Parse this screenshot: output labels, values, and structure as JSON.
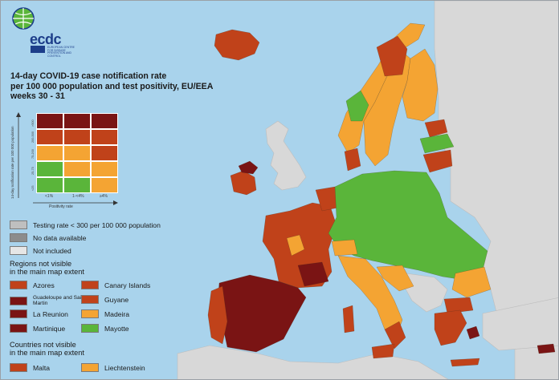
{
  "title": {
    "line1": "14-day COVID-19 case notification rate",
    "line2": "per 100 000 population and test positivity, EU/EEA",
    "line3": "weeks 30 - 31"
  },
  "logo": {
    "wordmark": "ecdc",
    "subtitle": "EUROPEAN CENTRE FOR DISEASE PREVENTION AND CONTROL"
  },
  "matrix": {
    "y_axis_title": "14-day notification rate per 100 000 population",
    "x_axis_title": "Positivity rate",
    "row_labels": [
      ">500",
      "200-500",
      "75-200",
      "25-75",
      "<25"
    ],
    "col_labels": [
      "<1%",
      "1-<4%",
      "≥4%"
    ],
    "colors": [
      [
        "#7a1414",
        "#7a1414",
        "#7a1414"
      ],
      [
        "#c0421a",
        "#c0421a",
        "#c0421a"
      ],
      [
        "#f4a433",
        "#f4a433",
        "#c0421a"
      ],
      [
        "#5ab53a",
        "#f4a433",
        "#f4a433"
      ],
      [
        "#5ab53a",
        "#5ab53a",
        "#f4a433"
      ]
    ]
  },
  "legend": {
    "status": [
      {
        "label": "Testing rate < 300 per 100 000 population",
        "color": "#bfbfbf"
      },
      {
        "label": "No data available",
        "color": "#8c8c8c"
      },
      {
        "label": "Not included",
        "color": "#e6e6e6"
      }
    ],
    "regions_title_1": "Regions not visible",
    "regions_title_2": "in the main map extent",
    "regions": [
      {
        "label": "Azores",
        "color": "#c0421a"
      },
      {
        "label": "Canary Islands",
        "color": "#c0421a"
      },
      {
        "label": "Guadeloupe and Saint Martin",
        "color": "#7a1414"
      },
      {
        "label": "Guyane",
        "color": "#c0421a"
      },
      {
        "label": "La Reunion",
        "color": "#7a1414"
      },
      {
        "label": "Madeira",
        "color": "#f4a433"
      },
      {
        "label": "Martinique",
        "color": "#7a1414"
      },
      {
        "label": "Mayotte",
        "color": "#5ab53a"
      }
    ],
    "countries_title_1": "Countries not visible",
    "countries_title_2": "in the main map extent",
    "countries": [
      {
        "label": "Malta",
        "color": "#c0421a"
      },
      {
        "label": "Liechtenstein",
        "color": "#f4a433"
      }
    ]
  },
  "map_colors": {
    "dark_red": "#7a1414",
    "red": "#c0421a",
    "orange": "#f4a433",
    "green": "#5ab53a",
    "non_eu": "#d8d8d8",
    "sea": "#a9d3ec"
  }
}
